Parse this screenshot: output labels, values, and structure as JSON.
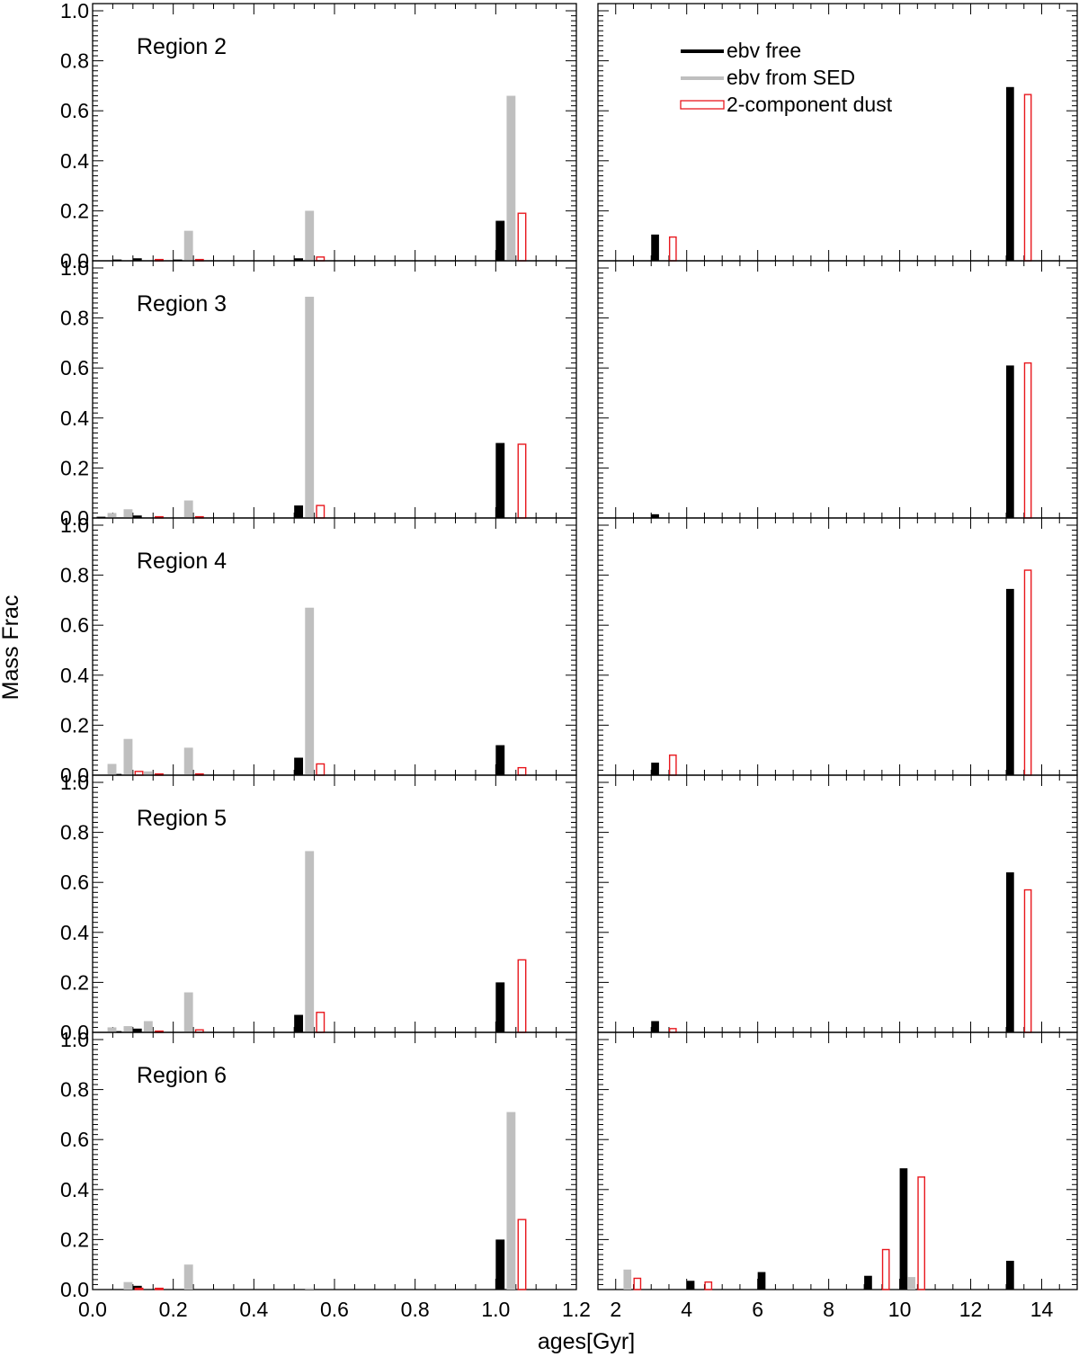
{
  "chart_data": {
    "type": "bar",
    "ylabel": "Mass Frac",
    "xlabel": "ages[Gyr]",
    "left_xlim": [
      0.0,
      1.2
    ],
    "right_xlim": [
      1.5,
      15.0
    ],
    "ylim": [
      0.0,
      1.0
    ],
    "left_xticks": [
      "0.0",
      "0.2",
      "0.4",
      "0.6",
      "0.8",
      "1.0",
      "1.2"
    ],
    "right_xticks": [
      "2",
      "4",
      "6",
      "8",
      "10",
      "12",
      "14"
    ],
    "yticks": [
      "0.0",
      "0.2",
      "0.4",
      "0.6",
      "0.8",
      "1.0"
    ],
    "grid": false,
    "legend": {
      "placement": "top-right panel, upper-left",
      "entries": [
        {
          "name": "ebv free",
          "color": "#000000",
          "style": "filled"
        },
        {
          "name": "ebv from SED",
          "color": "#bfbfbf",
          "style": "filled"
        },
        {
          "name": "2-component dust",
          "color": "#e8181e",
          "style": "outline"
        }
      ]
    },
    "series_colors": {
      "ebv_free": "#000000",
      "ebv_from_sed": "#bfbfbf",
      "two_component": "#e8181e"
    },
    "left_ages": [
      0.01,
      0.05,
      0.1,
      0.2,
      0.5,
      1.0
    ],
    "right_ages": [
      2.0,
      3.0,
      4.0,
      6.0,
      9.0,
      10.0,
      13.0
    ],
    "panels": [
      {
        "region": "Region 2",
        "left": {
          "ebv_free": [
            0.0,
            0.005,
            0.01,
            0.005,
            0.01,
            0.16
          ],
          "ebv_from_sed": [
            0.0,
            0.0,
            0.0,
            0.12,
            0.2,
            0.66
          ],
          "two_component": [
            0.0,
            0.0,
            0.005,
            0.005,
            0.015,
            0.19
          ]
        },
        "right": {
          "ebv_free": [
            0.0,
            0.105,
            0.0,
            0.0,
            0.0,
            0.0,
            0.695
          ],
          "ebv_from_sed": [
            0.0,
            0.0,
            0.0,
            0.0,
            0.0,
            0.0,
            0.0
          ],
          "two_component": [
            0.0,
            0.095,
            0.0,
            0.0,
            0.0,
            0.0,
            0.665
          ]
        }
      },
      {
        "region": "Region 3",
        "left": {
          "ebv_free": [
            0.005,
            0.0,
            0.01,
            0.0,
            0.05,
            0.3
          ],
          "ebv_from_sed": [
            0.02,
            0.035,
            0.0,
            0.07,
            0.885,
            0.0
          ],
          "two_component": [
            0.0,
            0.0,
            0.005,
            0.005,
            0.05,
            0.295
          ]
        },
        "right": {
          "ebv_free": [
            0.0,
            0.015,
            0.0,
            0.0,
            0.0,
            0.0,
            0.61
          ],
          "ebv_from_sed": [
            0.0,
            0.0,
            0.0,
            0.0,
            0.0,
            0.0,
            0.0
          ],
          "two_component": [
            0.0,
            0.0,
            0.0,
            0.0,
            0.0,
            0.0,
            0.62
          ]
        }
      },
      {
        "region": "Region 4",
        "left": {
          "ebv_free": [
            0.0,
            0.005,
            0.0,
            0.0,
            0.07,
            0.12
          ],
          "ebv_from_sed": [
            0.045,
            0.145,
            0.015,
            0.11,
            0.67,
            0.0
          ],
          "two_component": [
            0.0,
            0.015,
            0.005,
            0.005,
            0.045,
            0.03
          ]
        },
        "right": {
          "ebv_free": [
            0.0,
            0.05,
            0.0,
            0.0,
            0.0,
            0.0,
            0.745
          ],
          "ebv_from_sed": [
            0.0,
            0.0,
            0.0,
            0.0,
            0.0,
            0.0,
            0.0
          ],
          "two_component": [
            0.0,
            0.08,
            0.0,
            0.0,
            0.0,
            0.0,
            0.82
          ]
        }
      },
      {
        "region": "Region 5",
        "left": {
          "ebv_free": [
            0.0,
            0.005,
            0.015,
            0.0,
            0.07,
            0.2
          ],
          "ebv_from_sed": [
            0.02,
            0.025,
            0.045,
            0.16,
            0.725,
            0.0
          ],
          "two_component": [
            0.0,
            0.0,
            0.005,
            0.01,
            0.08,
            0.29
          ]
        },
        "right": {
          "ebv_free": [
            0.0,
            0.045,
            0.0,
            0.0,
            0.0,
            0.0,
            0.64
          ],
          "ebv_from_sed": [
            0.0,
            0.0,
            0.0,
            0.0,
            0.0,
            0.0,
            0.0
          ],
          "two_component": [
            0.0,
            0.015,
            0.0,
            0.0,
            0.0,
            0.0,
            0.57
          ]
        }
      },
      {
        "region": "Region 6",
        "left": {
          "ebv_free": [
            0.0,
            0.0,
            0.015,
            0.0,
            0.0,
            0.2
          ],
          "ebv_from_sed": [
            0.0,
            0.03,
            0.0,
            0.1,
            0.005,
            0.71
          ],
          "two_component": [
            0.0,
            0.005,
            0.005,
            0.0,
            0.0,
            0.28
          ]
        },
        "right": {
          "ebv_free": [
            0.0,
            0.0,
            0.035,
            0.07,
            0.055,
            0.485,
            0.115
          ],
          "ebv_from_sed": [
            0.08,
            0.0,
            0.0,
            0.0,
            0.0,
            0.05,
            0.0
          ],
          "two_component": [
            0.045,
            0.0,
            0.03,
            0.0,
            0.16,
            0.45,
            0.0
          ]
        }
      }
    ]
  }
}
